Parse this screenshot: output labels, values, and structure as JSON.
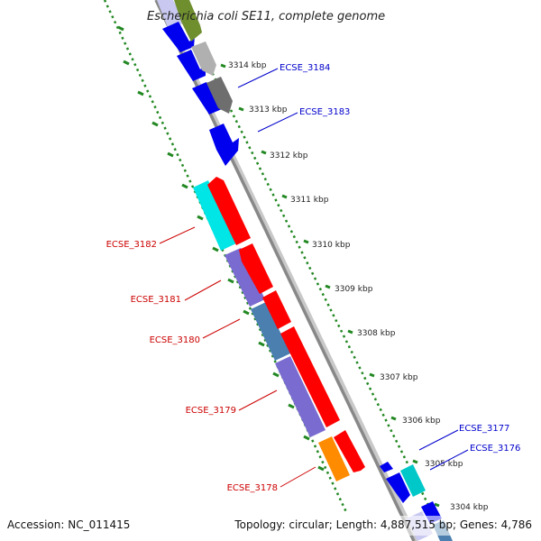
{
  "title": "Escherichia coli SE11, complete genome",
  "footer": {
    "accession": "Accession: NC_011415",
    "summary": "Topology: circular; Length: 4,887,515 bp; Genes: 4,786"
  },
  "scale_labels": [
    "3314 kbp",
    "3313 kbp",
    "3312 kbp",
    "3311 kbp",
    "3310 kbp",
    "3309 kbp",
    "3308 kbp",
    "3307 kbp",
    "3306 kbp",
    "3305 kbp",
    "3304 kbp"
  ],
  "gene_labels": [
    {
      "text": "ECSE_3184",
      "strand": "plus"
    },
    {
      "text": "ECSE_3183",
      "strand": "plus"
    },
    {
      "text": "ECSE_3182",
      "strand": "minus"
    },
    {
      "text": "ECSE_3181",
      "strand": "minus"
    },
    {
      "text": "ECSE_3180",
      "strand": "minus"
    },
    {
      "text": "ECSE_3179",
      "strand": "minus"
    },
    {
      "text": "ECSE_3178",
      "strand": "minus"
    },
    {
      "text": "ECSE_3177",
      "strand": "plus"
    },
    {
      "text": "ECSE_3176",
      "strand": "plus"
    }
  ],
  "colors": {
    "plus_label": "#0000cc",
    "minus_label": "#cc0000",
    "backbone": "#888888",
    "dotted_track": "#228822",
    "red": "#ff0000",
    "blue": "#0000ee",
    "cyan": "#00e5e5",
    "purple": "#7a6bd0",
    "steel": "#4a7fb0",
    "orange": "#ff8c00",
    "grey": "#a0a0a0",
    "darkgrey": "#6e6e6e",
    "olive": "#6f8f2f",
    "lavender": "#c8c8f0"
  }
}
